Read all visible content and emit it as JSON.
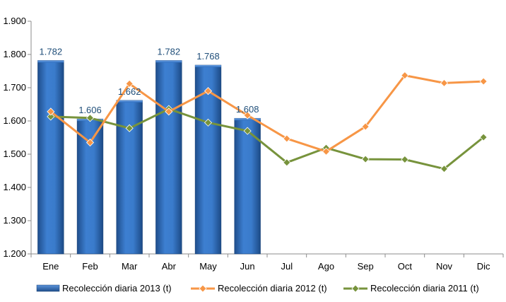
{
  "chart_data": {
    "type": "bar",
    "categories": [
      "Ene",
      "Feb",
      "Mar",
      "Abr",
      "May",
      "Jun",
      "Jul",
      "Ago",
      "Sep",
      "Oct",
      "Nov",
      "Dic"
    ],
    "ylim": [
      1200,
      1900
    ],
    "yticks": [
      1200,
      1300,
      1400,
      1500,
      1600,
      1700,
      1800,
      1900
    ],
    "ytick_labels": [
      "1.200",
      "1.300",
      "1.400",
      "1.500",
      "1.600",
      "1.700",
      "1.800",
      "1.900"
    ],
    "grid": false,
    "legend_position": "bottom",
    "series": [
      {
        "name": "Recolección diaria  2013 (t)",
        "type": "bar",
        "color": "#2F6FC0",
        "values": [
          1782,
          1606,
          1662,
          1782,
          1768,
          1608,
          null,
          null,
          null,
          null,
          null,
          null
        ],
        "data_labels": [
          "1.782",
          "1.606",
          "1.662",
          "1.782",
          "1.768",
          "1.608",
          null,
          null,
          null,
          null,
          null,
          null
        ]
      },
      {
        "name": "Recolección diaria  2012 (t)",
        "type": "line",
        "color": "#F79646",
        "values": [
          1628,
          1535,
          1712,
          1628,
          1690,
          1617,
          1547,
          1508,
          1583,
          1737,
          1714,
          1719
        ]
      },
      {
        "name": "Recolección diaria  2011 (t)",
        "type": "line",
        "color": "#77933C",
        "values": [
          1613,
          1609,
          1578,
          1636,
          1595,
          1570,
          1475,
          1519,
          1485,
          1484,
          1456,
          1551
        ]
      }
    ]
  }
}
